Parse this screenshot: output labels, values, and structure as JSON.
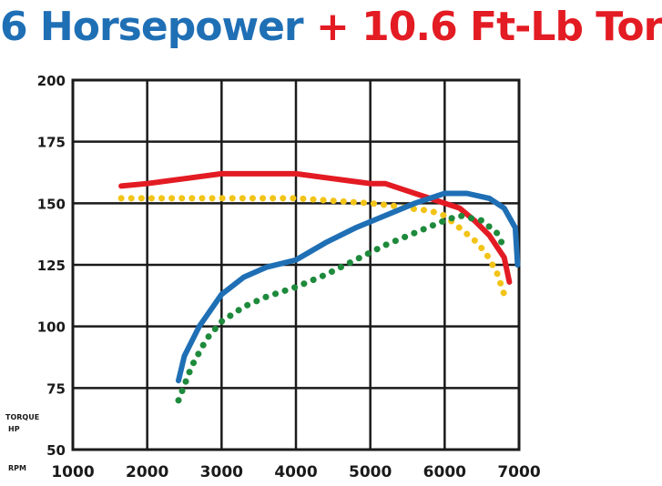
{
  "title": {
    "hp_part": "6 Horsepower",
    "plus": "+",
    "torque_part": "10.6 Ft-Lb Tor"
  },
  "chart_data": {
    "type": "line",
    "title": "6 Horsepower + 10.6 Ft-Lb Tor",
    "x_axis_label": "RPM",
    "y_axis_labels": [
      "TORQUE",
      "HP"
    ],
    "xlim": [
      1000,
      7000
    ],
    "ylim": [
      50,
      200
    ],
    "x_ticks": [
      1000,
      2000,
      3000,
      4000,
      5000,
      6000,
      7000
    ],
    "y_ticks": [
      200,
      175,
      150,
      125,
      100,
      75,
      50
    ],
    "grid": true,
    "series": [
      {
        "color": "#e31b23",
        "style": "solid",
        "x": [
          1650,
          2000,
          2500,
          3000,
          3500,
          4000,
          4500,
          5000,
          5200,
          5500,
          5800,
          6000,
          6200,
          6400,
          6600,
          6800,
          6870
        ],
        "y": [
          157,
          158,
          160,
          162,
          162,
          162,
          160,
          158,
          158,
          155,
          152,
          150,
          148,
          143,
          137,
          128,
          118
        ]
      },
      {
        "color": "#f2c418",
        "style": "dotted",
        "x": [
          1650,
          2000,
          2500,
          3000,
          3500,
          4000,
          4500,
          5000,
          5300,
          5500,
          5800,
          6000,
          6200,
          6400,
          6550,
          6700,
          6800
        ],
        "y": [
          152,
          152,
          152,
          152,
          152,
          152,
          151,
          150,
          149,
          148,
          147,
          145,
          140,
          135,
          130,
          122,
          113
        ]
      },
      {
        "color": "#1f6fb5",
        "style": "solid",
        "x": [
          2420,
          2500,
          2700,
          3000,
          3300,
          3600,
          4000,
          4400,
          4800,
          5200,
          5600,
          6000,
          6300,
          6600,
          6800,
          6950,
          6980
        ],
        "y": [
          78,
          88,
          100,
          113,
          120,
          124,
          127,
          134,
          140,
          145,
          150,
          154,
          154,
          152,
          148,
          140,
          125
        ]
      },
      {
        "color": "#1e8a3c",
        "style": "dotted",
        "x": [
          2420,
          2600,
          2800,
          3000,
          3300,
          3600,
          4000,
          4400,
          4800,
          5200,
          5600,
          6000,
          6200,
          6500,
          6700,
          6800
        ],
        "y": [
          70,
          84,
          95,
          102,
          108,
          112,
          116,
          121,
          127,
          133,
          138,
          143,
          145,
          143,
          138,
          132
        ]
      }
    ]
  }
}
